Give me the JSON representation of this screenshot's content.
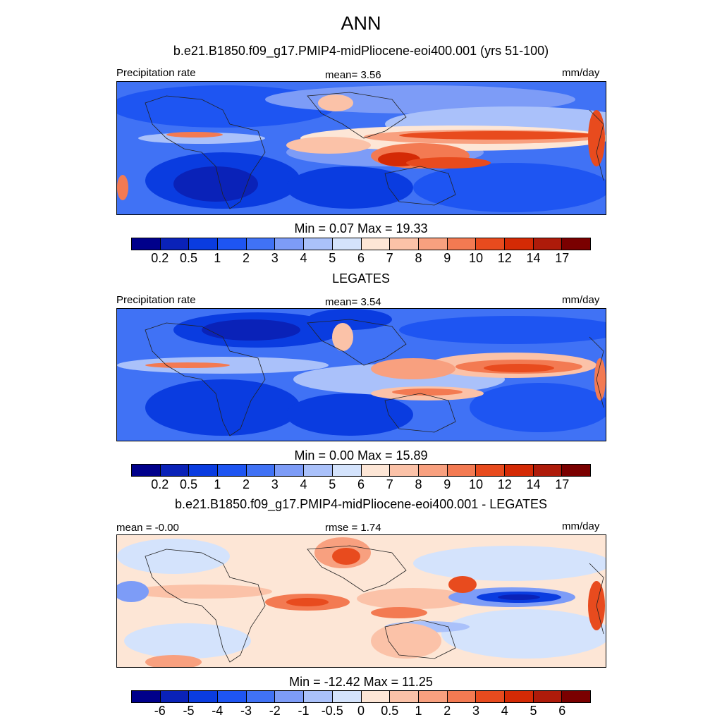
{
  "figure": {
    "season": "ANN"
  },
  "panels": [
    {
      "id": "model",
      "title": "b.e21.B1850.f09_g17.PMIP4-midPliocene-eoi400.001 (yrs 51-100)",
      "left_label": "Precipitation rate",
      "center_label": "mean=   3.56",
      "right_label": "mm/day",
      "minmax": "Min =   0.07 Max =  19.33",
      "colorbar_ticks": [
        "0.2",
        "0.5",
        "1",
        "2",
        "3",
        "4",
        "5",
        "6",
        "7",
        "8",
        "9",
        "10",
        "12",
        "14",
        "17"
      ]
    },
    {
      "id": "obs",
      "title": "LEGATES",
      "left_label": "Precipitation rate",
      "center_label": "mean=   3.54",
      "right_label": "mm/day",
      "minmax": "Min =   0.00 Max =  15.89",
      "colorbar_ticks": [
        "0.2",
        "0.5",
        "1",
        "2",
        "3",
        "4",
        "5",
        "6",
        "7",
        "8",
        "9",
        "10",
        "12",
        "14",
        "17"
      ]
    },
    {
      "id": "diff",
      "title": "b.e21.B1850.f09_g17.PMIP4-midPliocene-eoi400.001 - LEGATES",
      "left_label": "mean =  -0.00",
      "center_label": "rmse =   1.74",
      "right_label": "mm/day",
      "minmax": "Min = -12.42 Max =  11.25",
      "colorbar_ticks": [
        "-6",
        "-5",
        "-4",
        "-3",
        "-2",
        "-1",
        "-0.5",
        "0",
        "0.5",
        "1",
        "2",
        "3",
        "4",
        "5",
        "6"
      ]
    }
  ],
  "colors": {
    "palette": [
      "#00008b",
      "#0a22b8",
      "#0a3ce0",
      "#1e55f2",
      "#4072f5",
      "#7d9cf7",
      "#aac1fa",
      "#d4e3fc",
      "#fde6d6",
      "#fbc2a8",
      "#f8a07f",
      "#f37a52",
      "#e84b1e",
      "#d42a05",
      "#ae1b0a",
      "#7a0000"
    ]
  },
  "chart_data": [
    {
      "type": "heatmap",
      "title": "b.e21.B1850.f09_g17.PMIP4-midPliocene-eoi400.001 (yrs 51-100)",
      "variable": "Precipitation rate",
      "units": "mm/day",
      "mean": 3.56,
      "min": 0.07,
      "max": 19.33,
      "contour_levels": [
        0.2,
        0.5,
        1,
        2,
        3,
        4,
        5,
        6,
        7,
        8,
        9,
        10,
        12,
        14,
        17
      ]
    },
    {
      "type": "heatmap",
      "title": "LEGATES",
      "variable": "Precipitation rate",
      "units": "mm/day",
      "mean": 3.54,
      "min": 0.0,
      "max": 15.89,
      "contour_levels": [
        0.2,
        0.5,
        1,
        2,
        3,
        4,
        5,
        6,
        7,
        8,
        9,
        10,
        12,
        14,
        17
      ]
    },
    {
      "type": "heatmap",
      "title": "b.e21.B1850.f09_g17.PMIP4-midPliocene-eoi400.001 - LEGATES",
      "units": "mm/day",
      "mean": -0.0,
      "rmse": 1.74,
      "min": -12.42,
      "max": 11.25,
      "contour_levels": [
        -6,
        -5,
        -4,
        -3,
        -2,
        -1,
        -0.5,
        0,
        0.5,
        1,
        2,
        3,
        4,
        5,
        6
      ]
    }
  ]
}
